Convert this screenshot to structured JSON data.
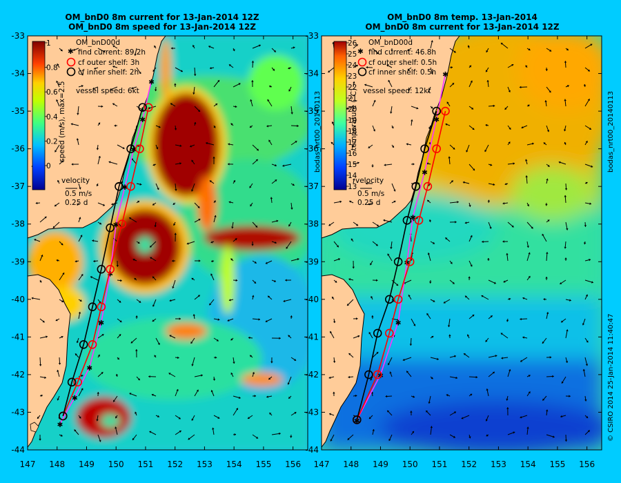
{
  "panels": {
    "left": {
      "title_line1": "OM_bnD0 8m current for 13-Jan-2014 12Z",
      "title_line2": "OM_bnD0 8m speed for 13-Jan-2014 12Z",
      "model": "OM_bnD00d",
      "legend": {
        "find_current": "find current: 89.2h",
        "outer_shelf": "cf outer shelf: 3h",
        "inner_shelf": "cf inner shelf: 2h",
        "vessel_speed": "vessel speed: 6kt"
      },
      "colorbar_label": "speed (m/s), max=2.5",
      "colorbar_ticks": [
        "1",
        "0.8",
        "0.6",
        "0.4",
        "0.2",
        "0"
      ],
      "velocity_label": "velocity",
      "velocity_scale": "0.5 m/s",
      "velocity_time": "0.25 d",
      "side_label": ""
    },
    "right": {
      "title_line1": "OM_bnD0 8m temp. 13-Jan-2014",
      "title_line2": "OM_bnD0 8m current for 13-Jan-2014 12Z",
      "model": "OM_bnD00d",
      "legend": {
        "find_current": "find current: 46.8h",
        "outer_shelf": "cf outer shelf: 0.5h",
        "inner_shelf": "cf inner shelf: 0.5h",
        "vessel_speed": "vessel speed: 12kt"
      },
      "colorbar_label": "temperature (°C)",
      "colorbar_ticks": [
        "26",
        "25",
        "24",
        "23",
        "22",
        "21",
        "20",
        "19",
        "18",
        "17",
        "16",
        "15",
        "14",
        "13"
      ],
      "velocity_label": "velocity",
      "velocity_scale": "0.5 m/s",
      "velocity_time": "0.25 d",
      "side_label": "bodas_nrt00_20140113"
    }
  },
  "left_side_label": "bodas_nrt00_20140113",
  "right_side_label": "bodas_nrt00_20140113",
  "credit": "© CSIRO 2014  25-Jan-2014 11:40:47",
  "axes": {
    "lat_ticks": [
      "-33",
      "-34",
      "-35",
      "-36",
      "-37",
      "-38",
      "-39",
      "-40",
      "-41",
      "-42",
      "-43",
      "-44"
    ],
    "lon_ticks": [
      "147",
      "148",
      "149",
      "150",
      "151",
      "152",
      "153",
      "154",
      "155",
      "156"
    ],
    "lon_range": [
      147,
      156.5
    ],
    "lat_range": [
      -44,
      -33
    ]
  },
  "chart_data": [
    {
      "type": "heatmap",
      "title": "OM_bnD0 8m current for 13-Jan-2014 12Z / OM_bnD0 8m speed for 13-Jan-2014 12Z",
      "variable": "speed (m/s), max=2.5",
      "color_range": [
        0,
        1
      ],
      "xlim": [
        147,
        156.5
      ],
      "ylim": [
        -44,
        -33
      ],
      "series": [
        {
          "name": "find current: 89.2h",
          "x": [
            148.1,
            148.6,
            149.1,
            149.5,
            149.8,
            150.0,
            150.3,
            150.6,
            150.9,
            151.2
          ],
          "y": [
            -43.3,
            -42.6,
            -41.8,
            -40.6,
            -39.3,
            -38.0,
            -37.0,
            -36.0,
            -35.2,
            -34.2
          ]
        },
        {
          "name": "cf outer shelf: 3h",
          "x": [
            148.2,
            148.7,
            149.2,
            149.5,
            149.8,
            150.2,
            150.5,
            150.8,
            151.1
          ],
          "y": [
            -43.1,
            -42.2,
            -41.2,
            -40.2,
            -39.2,
            -38.0,
            -37.0,
            -36.0,
            -34.9
          ]
        },
        {
          "name": "cf inner shelf: 2h",
          "x": [
            148.2,
            148.5,
            148.9,
            149.2,
            149.5,
            149.8,
            150.1,
            150.5,
            150.9
          ],
          "y": [
            -43.1,
            -42.2,
            -41.2,
            -40.2,
            -39.2,
            -38.1,
            -37.0,
            -36.0,
            -34.9
          ]
        }
      ]
    },
    {
      "type": "heatmap",
      "title": "OM_bnD0 8m temp. 13-Jan-2014 / OM_bnD0 8m current for 13-Jan-2014 12Z",
      "variable": "temperature (°C)",
      "color_range": [
        13,
        26
      ],
      "xlim": [
        147,
        156.5
      ],
      "ylim": [
        -44,
        -33
      ],
      "series": [
        {
          "name": "find current: 46.8h",
          "x": [
            148.2,
            149.0,
            149.6,
            149.9,
            150.1,
            150.5,
            150.9,
            151.2
          ],
          "y": [
            -43.2,
            -42.0,
            -40.6,
            -39.0,
            -37.8,
            -36.6,
            -35.2,
            -34.0
          ]
        },
        {
          "name": "cf outer shelf: 0.5h",
          "x": [
            148.2,
            148.9,
            149.3,
            149.6,
            150.0,
            150.3,
            150.6,
            150.9,
            151.2
          ],
          "y": [
            -43.2,
            -42.0,
            -40.9,
            -40.0,
            -39.0,
            -37.9,
            -37.0,
            -36.0,
            -35.0
          ]
        },
        {
          "name": "cf inner shelf: 0.5h",
          "x": [
            148.2,
            148.6,
            148.9,
            149.3,
            149.6,
            149.9,
            150.2,
            150.5,
            150.9
          ],
          "y": [
            -43.2,
            -42.0,
            -40.9,
            -40.0,
            -39.0,
            -37.9,
            -37.0,
            -36.0,
            -35.0
          ]
        }
      ]
    }
  ],
  "colors": {
    "background": "#00ccff",
    "land": "#ffcc99",
    "find_current": "#ff33ff",
    "outer_shelf": "#ff0000",
    "inner_shelf": "#000000"
  }
}
